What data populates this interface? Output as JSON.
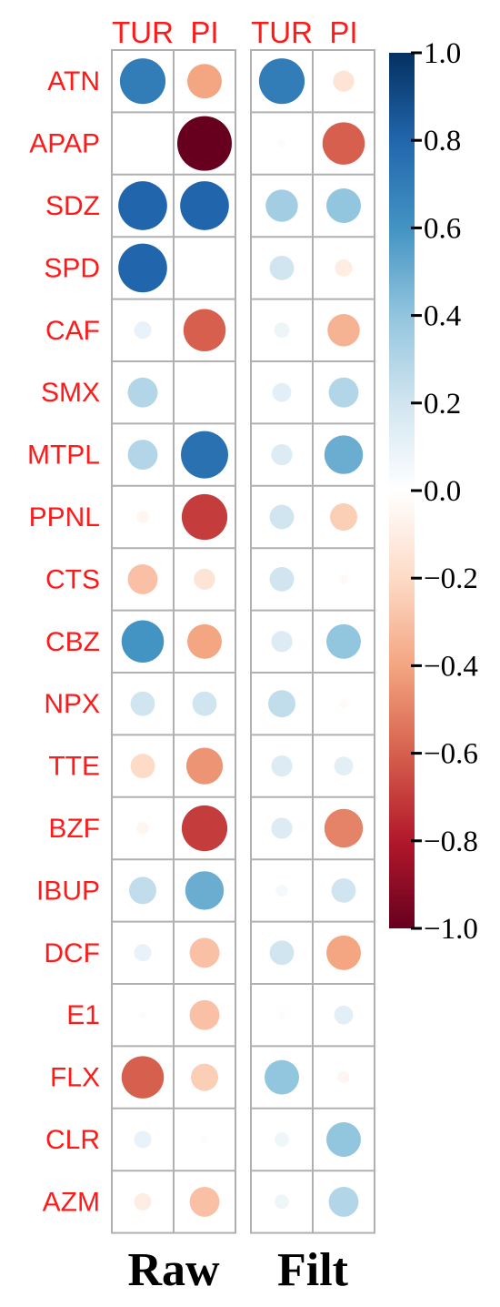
{
  "chart_data": {
    "type": "heatmap",
    "panels": [
      {
        "label": "Raw",
        "columns": [
          "TUR",
          "PI"
        ],
        "values": [
          [
            0.7,
            -0.4
          ],
          [
            0.0,
            -1.0
          ],
          [
            0.8,
            0.8
          ],
          [
            0.8,
            0.0
          ],
          [
            0.1,
            -0.6
          ],
          [
            0.3,
            0.0
          ],
          [
            0.3,
            0.75
          ],
          [
            -0.05,
            -0.7
          ],
          [
            -0.3,
            -0.15
          ],
          [
            0.6,
            -0.4
          ],
          [
            0.2,
            0.2
          ],
          [
            -0.2,
            -0.45
          ],
          [
            -0.05,
            -0.7
          ],
          [
            0.25,
            0.5
          ],
          [
            0.1,
            -0.3
          ],
          [
            -0.02,
            -0.3
          ],
          [
            -0.6,
            -0.25
          ],
          [
            0.1,
            -0.02
          ],
          [
            -0.1,
            -0.3
          ]
        ]
      },
      {
        "label": "Filt",
        "columns": [
          "TUR",
          "PI"
        ],
        "values": [
          [
            0.7,
            -0.15
          ],
          [
            -0.02,
            -0.6
          ],
          [
            0.35,
            0.4
          ],
          [
            0.2,
            -0.1
          ],
          [
            0.08,
            -0.35
          ],
          [
            0.12,
            0.3
          ],
          [
            0.15,
            0.5
          ],
          [
            0.2,
            -0.25
          ],
          [
            0.2,
            -0.03
          ],
          [
            0.15,
            0.4
          ],
          [
            0.25,
            -0.03
          ],
          [
            0.15,
            0.12
          ],
          [
            0.15,
            -0.5
          ],
          [
            0.05,
            0.2
          ],
          [
            0.2,
            -0.4
          ],
          [
            -0.02,
            0.12
          ],
          [
            0.4,
            -0.05
          ],
          [
            0.07,
            0.4
          ],
          [
            0.07,
            0.3
          ]
        ]
      }
    ],
    "rows": [
      "ATN",
      "APAP",
      "SDZ",
      "SPD",
      "CAF",
      "SMX",
      "MTPL",
      "PPNL",
      "CTS",
      "CBZ",
      "NPX",
      "TTE",
      "BZF",
      "IBUP",
      "DCF",
      "E1",
      "FLX",
      "CLR",
      "AZM"
    ],
    "colorbar": {
      "min": -1.0,
      "max": 1.0,
      "ticks": [
        "1.0",
        "0.8",
        "0.6",
        "0.4",
        "0.2",
        "0.0",
        "−0.2",
        "−0.4",
        "−0.6",
        "−0.8",
        "−1.0"
      ],
      "tick_values": [
        1.0,
        0.8,
        0.6,
        0.4,
        0.2,
        0.0,
        -0.2,
        -0.4,
        -0.6,
        -0.8,
        -1.0
      ],
      "colormap": "RdBu",
      "stops": [
        "#67001f",
        "#b2182b",
        "#d6604d",
        "#f4a582",
        "#fddbc7",
        "#ffffff",
        "#d1e5f0",
        "#92c5de",
        "#4393c3",
        "#2166ac",
        "#053061"
      ]
    },
    "grid_color": "#b0b0b0",
    "label_color": "#ff1a1a",
    "grid": true,
    "legend": "right"
  }
}
